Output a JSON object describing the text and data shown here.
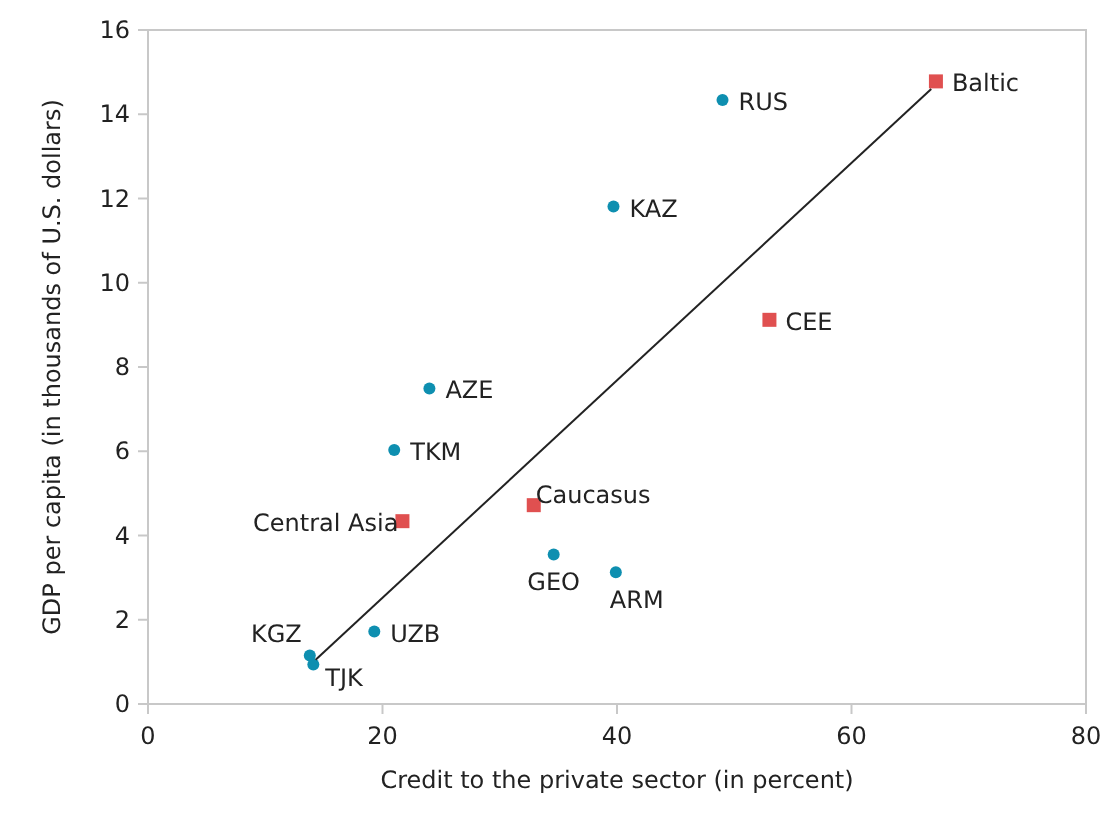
{
  "chart_data": {
    "type": "scatter",
    "xlabel": "Credit to the private sector (in percent)",
    "ylabel": "GDP per capita (in thousands of U.S. dollars)",
    "xlim": [
      0,
      80
    ],
    "xticks": [
      0,
      20,
      40,
      60,
      80
    ],
    "ylim": [
      0,
      16
    ],
    "yticks": [
      0,
      2,
      4,
      6,
      8,
      10,
      12,
      14,
      16
    ],
    "grid": false,
    "series": [
      {
        "marker": "circle",
        "color": "#0e8fb0",
        "x": [
          49.0,
          39.7,
          24.0,
          21.0,
          34.6,
          39.9,
          19.3,
          13.8,
          14.1
        ],
        "values": [
          14.34,
          11.81,
          7.49,
          6.03,
          3.55,
          3.13,
          1.72,
          1.15,
          0.94
        ]
      },
      {
        "marker": "square",
        "color": "#e05050",
        "x": [
          67.2,
          53.0,
          32.9,
          21.7
        ],
        "values": [
          14.78,
          9.12,
          4.72,
          4.34
        ]
      },
      {
        "type": "line",
        "marker": "none",
        "color": "#222222",
        "x": [
          14.3,
          66.8
        ],
        "values": [
          1.05,
          14.6
        ]
      }
    ],
    "annotations": [
      {
        "text": "RUS",
        "x": 49.0,
        "y": 14.34
      },
      {
        "text": "KAZ",
        "x": 39.7,
        "y": 11.81
      },
      {
        "text": "AZE",
        "x": 24.0,
        "y": 7.49
      },
      {
        "text": "TKM",
        "x": 21.0,
        "y": 6.03
      },
      {
        "text": "GEO",
        "x": 34.6,
        "y": 3.55
      },
      {
        "text": "ARM",
        "x": 39.9,
        "y": 3.13
      },
      {
        "text": "UZB",
        "x": 19.3,
        "y": 1.72
      },
      {
        "text": "KGZ",
        "x": 13.8,
        "y": 1.15
      },
      {
        "text": "TJK",
        "x": 14.1,
        "y": 0.94
      },
      {
        "text": "Baltic",
        "x": 67.2,
        "y": 14.78
      },
      {
        "text": "CEE",
        "x": 53.0,
        "y": 9.12
      },
      {
        "text": "Caucasus",
        "x": 32.9,
        "y": 4.72
      },
      {
        "text": "Central Asia",
        "x": 21.7,
        "y": 4.34
      }
    ]
  }
}
